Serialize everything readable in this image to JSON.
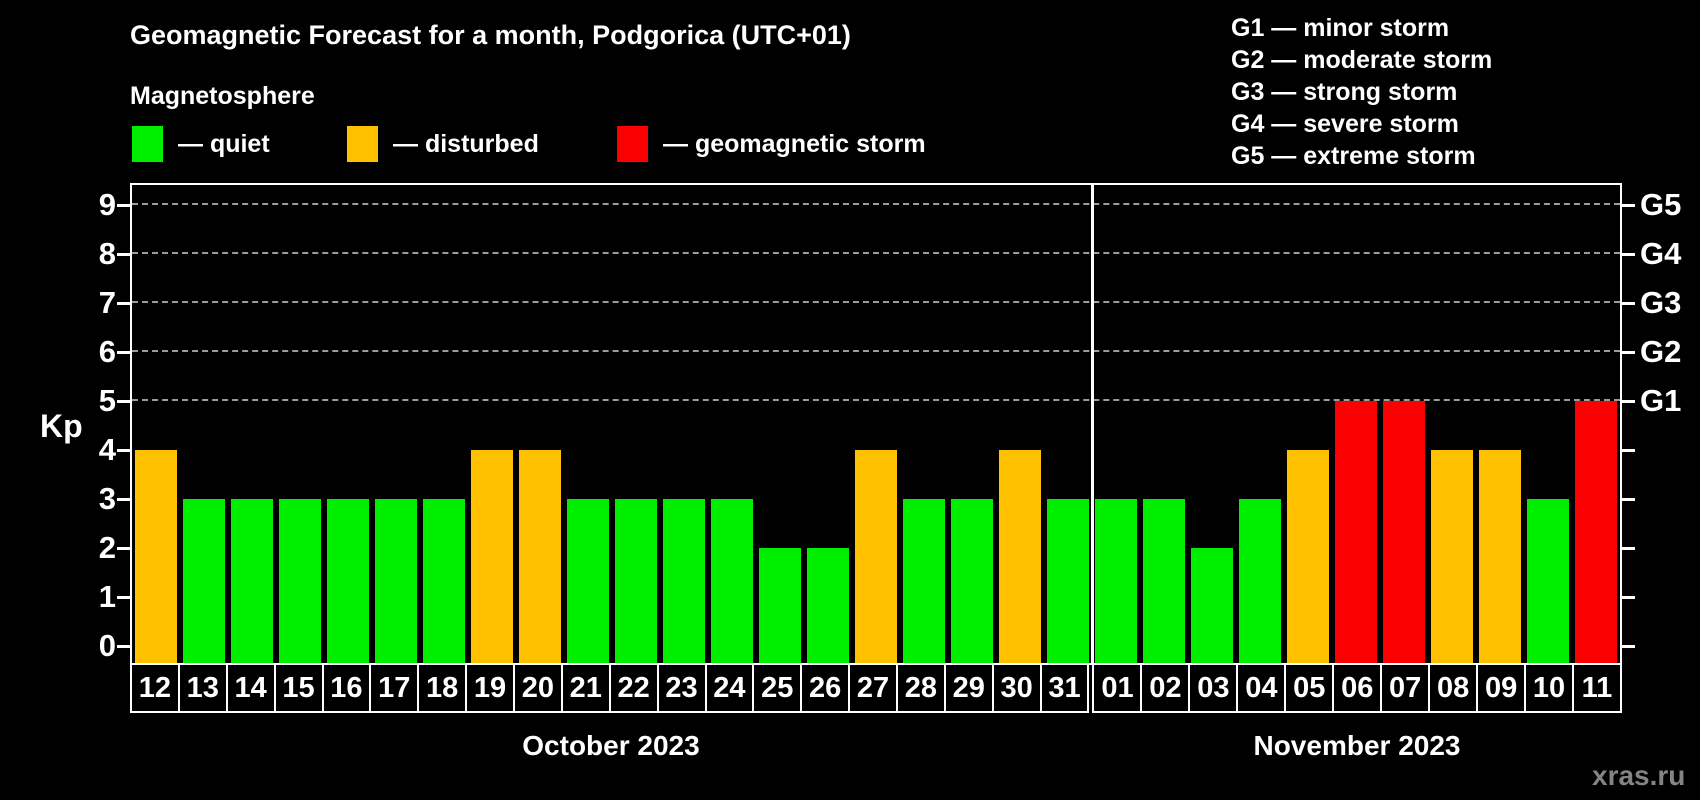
{
  "subtitle": "Magnetosphere",
  "legend": {
    "items": [
      {
        "label": "— quiet",
        "color": "#00ef00"
      },
      {
        "label": "— disturbed",
        "color": "#ffc000"
      },
      {
        "label": "— geomagnetic storm",
        "color": "#fa0000"
      }
    ]
  },
  "g_legend": [
    "G1 — minor storm",
    "G2 — moderate storm",
    "G3 — strong storm",
    "G4 — severe storm",
    "G5 — extreme storm"
  ],
  "watermark": "xras.ru",
  "chart_data": {
    "type": "bar",
    "title": "Geomagnetic Forecast for a month, Podgorica (UTC+01)",
    "ylabel": "Kp",
    "ylim": [
      0,
      9.4
    ],
    "grid": "dashed horizontal at Kp 5-9",
    "grid_color": "#9c9c9c",
    "y_ticks": [
      0,
      1,
      2,
      3,
      4,
      5,
      6,
      7,
      8,
      9
    ],
    "g_ticks": [
      {
        "kp": 5,
        "label": "G1"
      },
      {
        "kp": 6,
        "label": "G2"
      },
      {
        "kp": 7,
        "label": "G3"
      },
      {
        "kp": 8,
        "label": "G4"
      },
      {
        "kp": 9,
        "label": "G5"
      }
    ],
    "gridlines_kp": [
      5,
      6,
      7,
      8,
      9
    ],
    "colors": {
      "quiet": "#00ef00",
      "disturbed": "#ffc000",
      "storm": "#fa0000"
    },
    "thresholds": {
      "disturbed_min": 4,
      "storm_min": 5
    },
    "months": [
      {
        "label": "October 2023",
        "days": [
          {
            "label": "12",
            "kp": 4
          },
          {
            "label": "13",
            "kp": 3
          },
          {
            "label": "14",
            "kp": 3
          },
          {
            "label": "15",
            "kp": 3
          },
          {
            "label": "16",
            "kp": 3
          },
          {
            "label": "17",
            "kp": 3
          },
          {
            "label": "18",
            "kp": 3
          },
          {
            "label": "19",
            "kp": 4
          },
          {
            "label": "20",
            "kp": 4
          },
          {
            "label": "21",
            "kp": 3
          },
          {
            "label": "22",
            "kp": 3
          },
          {
            "label": "23",
            "kp": 3
          },
          {
            "label": "24",
            "kp": 3
          },
          {
            "label": "25",
            "kp": 2
          },
          {
            "label": "26",
            "kp": 2
          },
          {
            "label": "27",
            "kp": 4
          },
          {
            "label": "28",
            "kp": 3
          },
          {
            "label": "29",
            "kp": 3
          },
          {
            "label": "30",
            "kp": 4
          },
          {
            "label": "31",
            "kp": 3
          }
        ]
      },
      {
        "label": "November 2023",
        "days": [
          {
            "label": "01",
            "kp": 3
          },
          {
            "label": "02",
            "kp": 3
          },
          {
            "label": "03",
            "kp": 2
          },
          {
            "label": "04",
            "kp": 3
          },
          {
            "label": "05",
            "kp": 4
          },
          {
            "label": "06",
            "kp": 5
          },
          {
            "label": "07",
            "kp": 5
          },
          {
            "label": "08",
            "kp": 4
          },
          {
            "label": "09",
            "kp": 4
          },
          {
            "label": "10",
            "kp": 3
          },
          {
            "label": "11",
            "kp": 5
          }
        ]
      }
    ]
  }
}
